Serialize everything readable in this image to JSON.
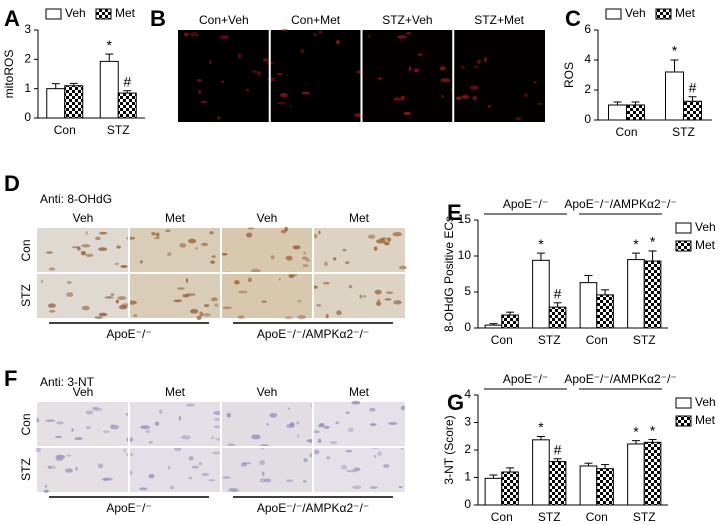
{
  "chart_data": [
    {
      "type": "bar",
      "panel": "A",
      "ylabel": "mitoROS",
      "categories": [
        "Con",
        "STZ"
      ],
      "legend": "top",
      "series": [
        {
          "name": "Veh",
          "color": "#ffffff",
          "values": [
            1.0,
            1.93
          ],
          "errors": [
            0.17,
            0.25
          ],
          "value_markers": [
            null,
            "*"
          ]
        },
        {
          "name": "Met",
          "color": "checker",
          "values": [
            1.1,
            0.85
          ],
          "errors": [
            0.08,
            0.08
          ],
          "value_markers": [
            null,
            "#"
          ]
        }
      ],
      "ylim": [
        0,
        3
      ],
      "yticks": [
        0,
        1,
        2,
        3
      ]
    },
    {
      "type": "bar",
      "panel": "C",
      "ylabel": "ROS",
      "categories": [
        "Con",
        "STZ"
      ],
      "legend": "top",
      "series": [
        {
          "name": "Veh",
          "color": "#ffffff",
          "values": [
            1.0,
            3.2
          ],
          "errors": [
            0.2,
            0.8
          ],
          "value_markers": [
            null,
            "*"
          ]
        },
        {
          "name": "Met",
          "color": "checker",
          "values": [
            1.0,
            1.25
          ],
          "errors": [
            0.2,
            0.3
          ],
          "value_markers": [
            null,
            "#"
          ]
        }
      ],
      "ylim": [
        0,
        6
      ],
      "yticks": [
        0,
        2,
        4,
        6
      ]
    },
    {
      "type": "bar",
      "panel": "E",
      "ylabel": "8-OHdG Positive ECs",
      "categories": [
        "Con",
        "STZ",
        "Con",
        "STZ"
      ],
      "legend": "right",
      "groups": [
        "ApoE⁻/⁻",
        "ApoE⁻/⁻/AMPKα2⁻/⁻"
      ],
      "series": [
        {
          "name": "Veh",
          "color": "#ffffff",
          "values": [
            0.4,
            9.4,
            6.3,
            9.5
          ],
          "errors": [
            0.2,
            1.0,
            1.0,
            0.9
          ],
          "value_markers": [
            null,
            "*",
            null,
            "*"
          ]
        },
        {
          "name": "Met",
          "color": "checker",
          "values": [
            1.8,
            2.9,
            4.6,
            9.3
          ],
          "errors": [
            0.4,
            0.6,
            0.7,
            1.4
          ],
          "value_markers": [
            null,
            "#",
            null,
            "*"
          ]
        }
      ],
      "ylim": [
        0,
        15
      ],
      "yticks": [
        0,
        5,
        10,
        15
      ]
    },
    {
      "type": "bar",
      "panel": "G",
      "ylabel": "3-NT (Score)",
      "categories": [
        "Con",
        "STZ",
        "Con",
        "STZ"
      ],
      "legend": "right",
      "groups": [
        "ApoE⁻/⁻",
        "ApoE⁻/⁻/AMPKα2⁻/⁻"
      ],
      "series": [
        {
          "name": "Veh",
          "color": "#ffffff",
          "values": [
            0.97,
            2.37,
            1.42,
            2.22
          ],
          "errors": [
            0.12,
            0.12,
            0.1,
            0.12
          ],
          "value_markers": [
            null,
            "*",
            null,
            "*"
          ]
        },
        {
          "name": "Met",
          "color": "checker",
          "values": [
            1.2,
            1.58,
            1.32,
            2.28
          ],
          "errors": [
            0.15,
            0.1,
            0.15,
            0.1
          ],
          "value_markers": [
            null,
            "#",
            null,
            "*"
          ]
        }
      ],
      "ylim": [
        0,
        4
      ],
      "yticks": [
        0,
        1,
        2,
        3,
        4
      ]
    }
  ],
  "image_panels": [
    {
      "panel": "B",
      "columns": [
        "Con+Veh",
        "Con+Met",
        "STZ+Veh",
        "STZ+Met"
      ]
    },
    {
      "panel": "D",
      "title": "Anti: 8-OHdG",
      "columns": [
        "Veh",
        "Met",
        "Veh",
        "Met"
      ],
      "rows": [
        "Con",
        "STZ"
      ],
      "groups": [
        "ApoE⁻/⁻",
        "ApoE⁻/⁻/AMPKα2⁻/⁻"
      ]
    },
    {
      "panel": "F",
      "title": "Anti: 3-NT",
      "columns": [
        "Veh",
        "Met",
        "Veh",
        "Met"
      ],
      "rows": [
        "Con",
        "STZ"
      ],
      "groups": [
        "ApoE⁻/⁻",
        "ApoE⁻/⁻/AMPKα2⁻/⁻"
      ]
    }
  ]
}
